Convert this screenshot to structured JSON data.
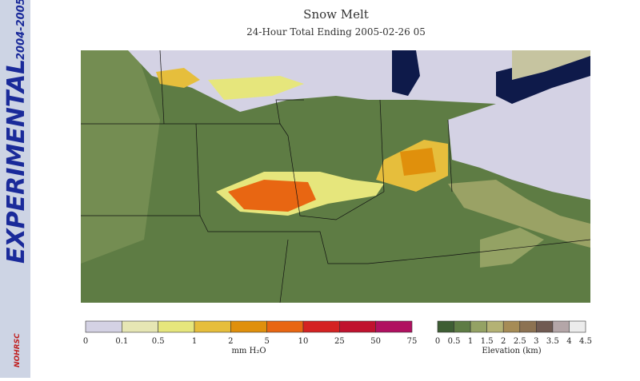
{
  "header": {
    "title": "Snow Melt",
    "subtitle": "24-Hour Total Ending 2005-02-26 05"
  },
  "banner": {
    "label": "EXPERIMENTAL",
    "years": "2004-2005",
    "logo": "NOHRSC"
  },
  "melt_legend": {
    "unit": "mm H₂O",
    "labels": [
      "0",
      "0.1",
      "0.5",
      "1",
      "2",
      "5",
      "10",
      "25",
      "50",
      "75"
    ],
    "colors": [
      "#d4d2e4",
      "#e6e6b4",
      "#e6e67c",
      "#e6be3c",
      "#e0900c",
      "#e86612",
      "#d42222",
      "#c0122e",
      "#b01060"
    ]
  },
  "elevation_legend": {
    "unit": "Elevation (km)",
    "labels": [
      "0",
      "0.5",
      "1",
      "1.5",
      "2",
      "2.5",
      "3",
      "3.5",
      "4",
      "4.5"
    ],
    "colors": [
      "#3e5e34",
      "#5e7c44",
      "#94a264",
      "#b4b274",
      "#a68c56",
      "#8c7252",
      "#705a52",
      "#b4a6a8",
      "#ececec"
    ]
  }
}
